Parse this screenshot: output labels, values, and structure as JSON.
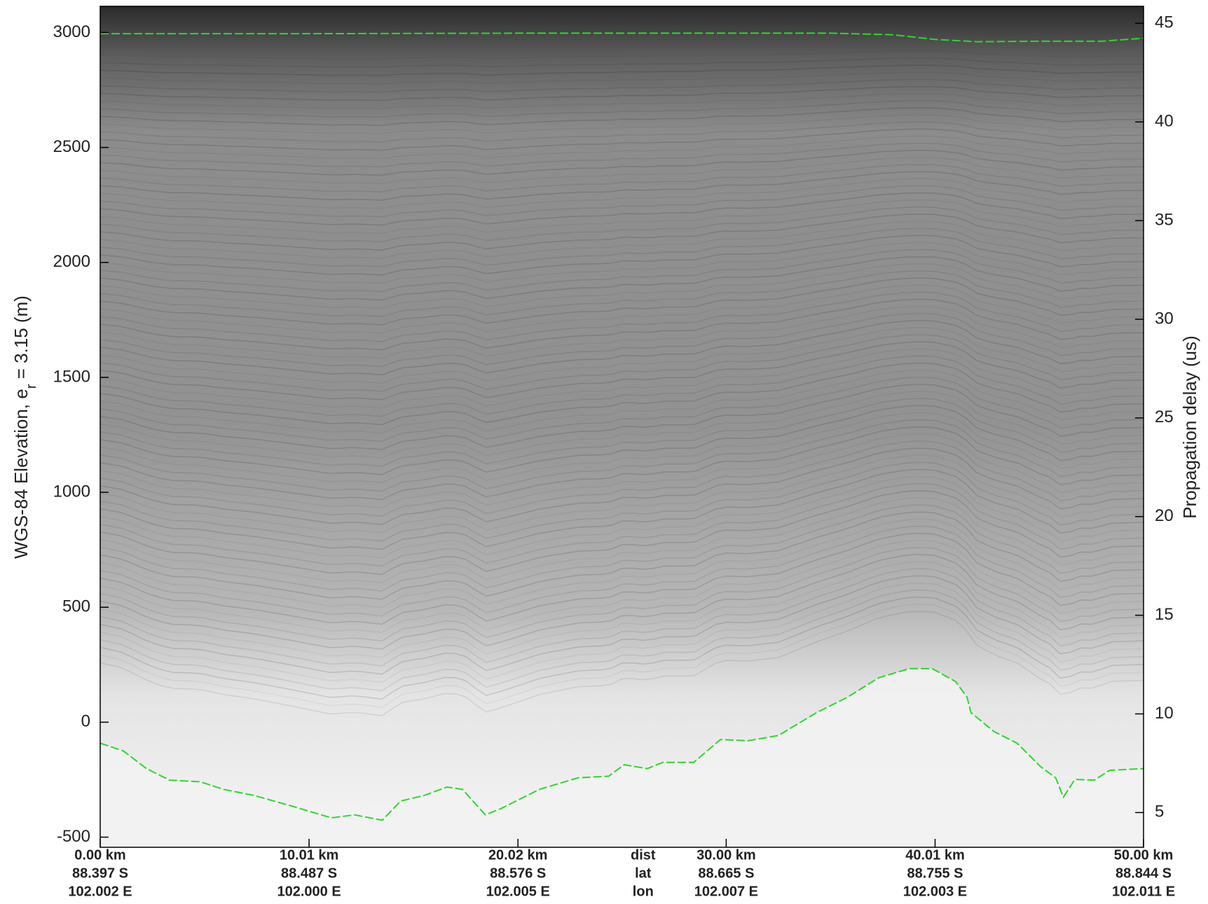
{
  "chart_data": {
    "type": "line",
    "ylabel": [
      "WGS-84 Elevation, e",
      "r",
      " = 3.15 (m)"
    ],
    "y2label": "Propagation delay (us)",
    "xlim": [
      0,
      50
    ],
    "xticks": [
      {
        "value": 0,
        "label": "0.00 km"
      },
      {
        "value": 10.01,
        "label": "10.01 km"
      },
      {
        "value": 20.02,
        "label": "20.02 km"
      },
      {
        "value": 30.0,
        "label": "30.00 km"
      },
      {
        "value": 40.01,
        "label": "40.01 km"
      },
      {
        "value": 50.0,
        "label": "50.00 km"
      }
    ],
    "xtick_lat": [
      "88.397 S",
      "88.487 S",
      "88.576 S",
      "88.665 S",
      "88.755 S",
      "88.844 S"
    ],
    "xtick_lon": [
      "102.002 E",
      "102.000 E",
      "102.005 E",
      "102.007 E",
      "102.003 E",
      "102.011 E"
    ],
    "xrow_labels": [
      "dist",
      "lat",
      "lon"
    ],
    "ylim": [
      -544,
      3114
    ],
    "yticks": [
      -500,
      0,
      500,
      1000,
      1500,
      2000,
      2500,
      3000
    ],
    "y2lim": [
      3.24,
      45.86
    ],
    "y2ticks": [
      5,
      10,
      15,
      20,
      25,
      30,
      35,
      40,
      45
    ],
    "series": [
      {
        "color": "#2bd92b",
        "x": [
          0,
          10,
          20,
          30,
          35,
          38,
          40,
          42,
          45,
          48,
          50
        ],
        "values": [
          2995,
          2995,
          2997,
          2997,
          2997,
          2990,
          2970,
          2960,
          2962,
          2962,
          2975
        ]
      },
      {
        "color": "#2bd92b",
        "x": [
          0,
          1.11,
          2.22,
          3.32,
          4.8,
          5.91,
          7.39,
          9.23,
          11.08,
          12.19,
          13.52,
          14.4,
          15.51,
          16.62,
          17.36,
          18.46,
          19.2,
          21.05,
          22.9,
          24.37,
          25.11,
          26.22,
          26.96,
          28.44,
          29.73,
          31.02,
          32.5,
          34.34,
          35.82,
          37.3,
          38.77,
          39.88,
          40.99,
          41.54,
          41.73,
          42.84,
          43.94,
          45.05,
          45.79,
          46.16,
          46.71,
          47.64,
          48.38,
          50
        ],
        "values": [
          -91,
          -125,
          -202,
          -252,
          -259,
          -292,
          -319,
          -366,
          -416,
          -403,
          -426,
          -343,
          -319,
          -282,
          -292,
          -403,
          -376,
          -292,
          -242,
          -235,
          -185,
          -202,
          -175,
          -175,
          -75,
          -81,
          -58,
          42,
          109,
          193,
          233,
          233,
          177,
          109,
          42,
          -41,
          -91,
          -192,
          -242,
          -326,
          -249,
          -252,
          -209,
          -202
        ]
      }
    ]
  }
}
